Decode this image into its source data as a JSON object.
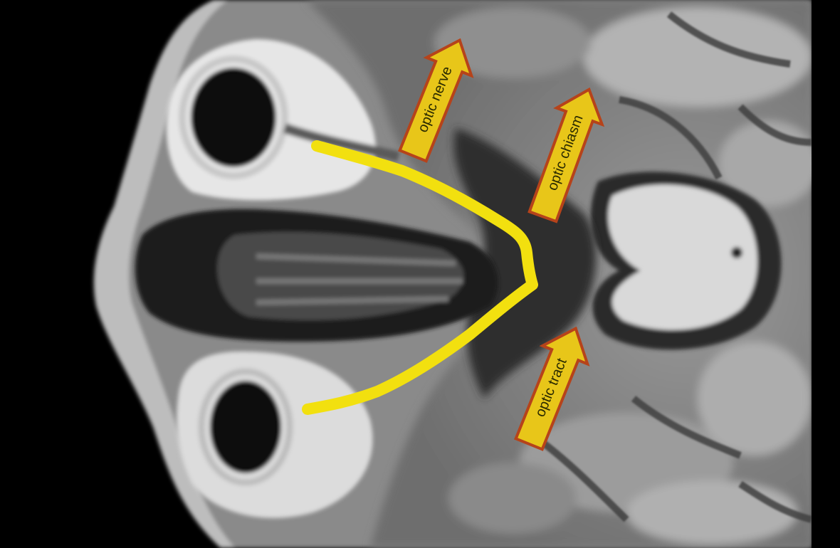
{
  "image": {
    "subject": "axial MRI brain scan at orbit level with highlighted visual pathway",
    "highlight_color": "#f2e00f",
    "arrow_fill": "#e8c619",
    "arrow_stroke": "#b6431a",
    "arrow_text_color": "#2b2b00"
  },
  "annotations": {
    "optic_nerve": "optic nerve",
    "optic_chiasm": "optic chiasm",
    "optic_tract": "optic tract"
  }
}
